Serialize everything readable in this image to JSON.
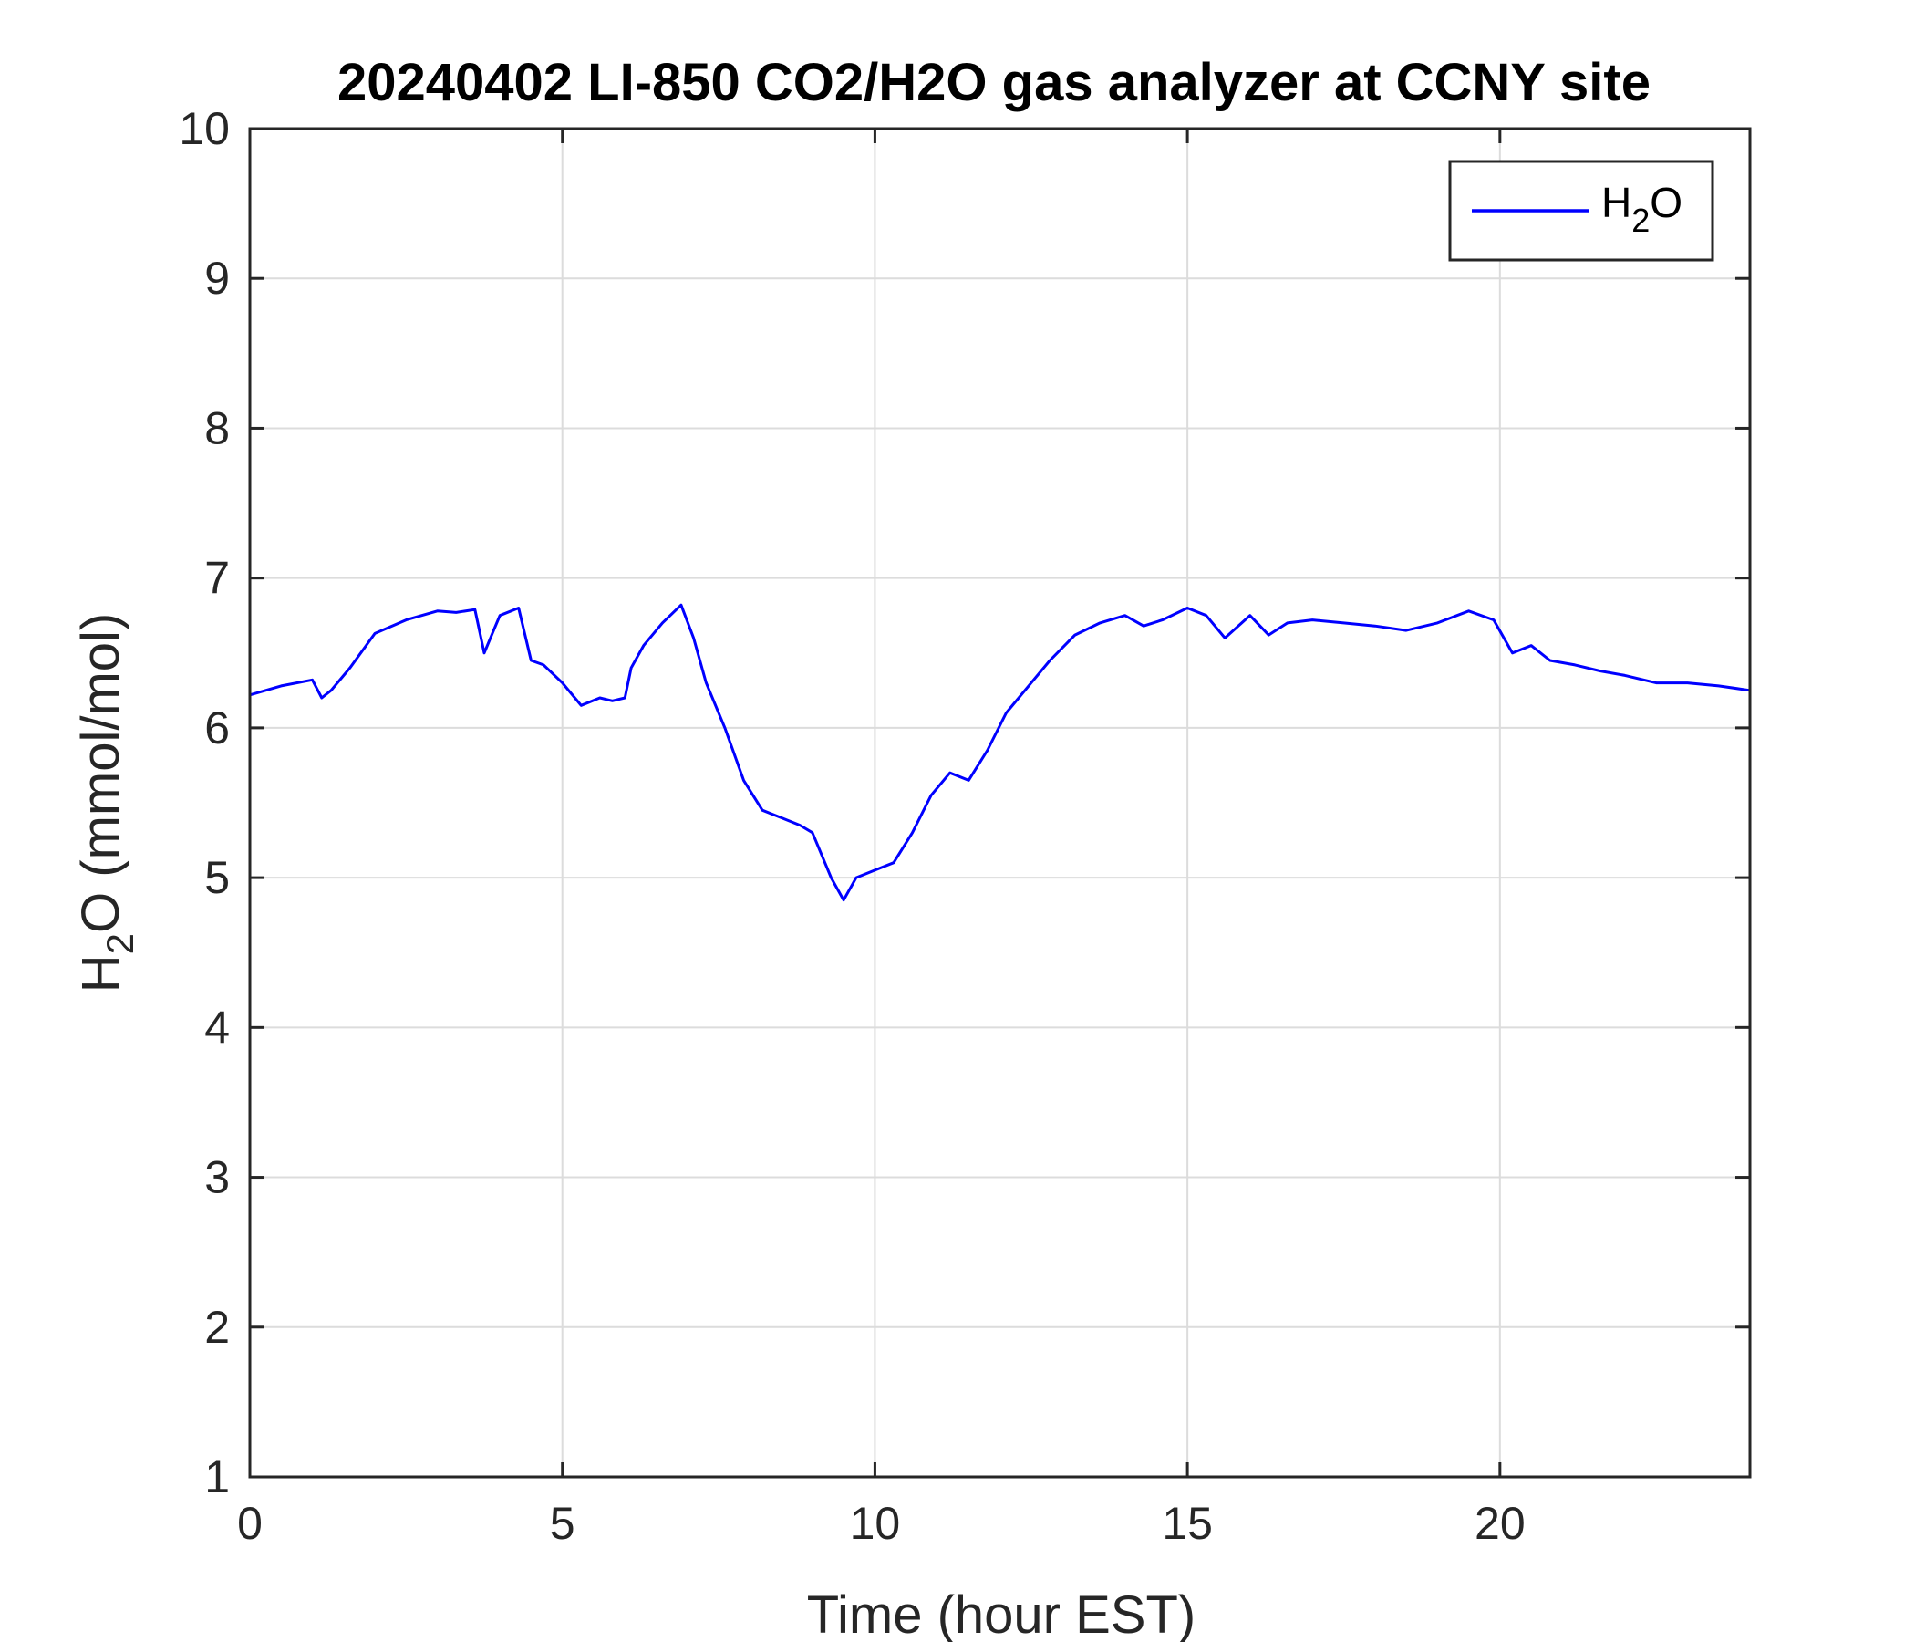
{
  "chart_data": {
    "type": "line",
    "title": "20240402 LI-850 CO2/H2O gas analyzer at CCNY site",
    "xlabel": "Time (hour EST)",
    "ylabel": {
      "prefix": "H",
      "sub": "2",
      "suffix": "O (mmol/mol)"
    },
    "xlim": [
      0,
      24
    ],
    "ylim": [
      1,
      10
    ],
    "xticks": [
      0,
      5,
      10,
      15,
      20
    ],
    "yticks": [
      1,
      2,
      3,
      4,
      5,
      6,
      7,
      8,
      9,
      10
    ],
    "grid": true,
    "legend": {
      "placement": "top-right"
    },
    "series": [
      {
        "name": {
          "prefix": "H",
          "sub": "2",
          "suffix": "O"
        },
        "color": "#0000ff",
        "x": [
          0.0,
          0.5,
          1.0,
          1.15,
          1.3,
          1.6,
          2.0,
          2.5,
          3.0,
          3.3,
          3.6,
          3.75,
          3.9,
          4.0,
          4.3,
          4.5,
          4.7,
          5.0,
          5.3,
          5.6,
          5.8,
          6.0,
          6.1,
          6.3,
          6.6,
          6.9,
          7.1,
          7.3,
          7.6,
          7.9,
          8.2,
          8.5,
          8.8,
          9.0,
          9.3,
          9.5,
          9.7,
          10.0,
          10.3,
          10.6,
          10.9,
          11.2,
          11.5,
          11.8,
          12.1,
          12.5,
          12.8,
          13.2,
          13.6,
          14.0,
          14.3,
          14.6,
          15.0,
          15.3,
          15.6,
          16.0,
          16.3,
          16.6,
          17.0,
          17.5,
          18.0,
          18.5,
          19.0,
          19.5,
          19.9,
          20.2,
          20.5,
          20.8,
          21.2,
          21.6,
          22.0,
          22.5,
          23.0,
          23.5,
          24.0
        ],
        "values": [
          6.22,
          6.28,
          6.32,
          6.2,
          6.25,
          6.4,
          6.63,
          6.72,
          6.78,
          6.77,
          6.79,
          6.5,
          6.65,
          6.75,
          6.8,
          6.45,
          6.42,
          6.3,
          6.15,
          6.2,
          6.18,
          6.2,
          6.4,
          6.55,
          6.7,
          6.82,
          6.6,
          6.3,
          6.0,
          5.65,
          5.45,
          5.4,
          5.35,
          5.3,
          5.0,
          4.85,
          5.0,
          5.05,
          5.1,
          5.3,
          5.55,
          5.7,
          5.65,
          5.85,
          6.1,
          6.3,
          6.45,
          6.62,
          6.7,
          6.75,
          6.68,
          6.72,
          6.8,
          6.75,
          6.6,
          6.75,
          6.62,
          6.7,
          6.72,
          6.7,
          6.68,
          6.65,
          6.7,
          6.78,
          6.72,
          6.5,
          6.55,
          6.45,
          6.42,
          6.38,
          6.35,
          6.3,
          6.3,
          6.28,
          6.25
        ]
      }
    ]
  }
}
